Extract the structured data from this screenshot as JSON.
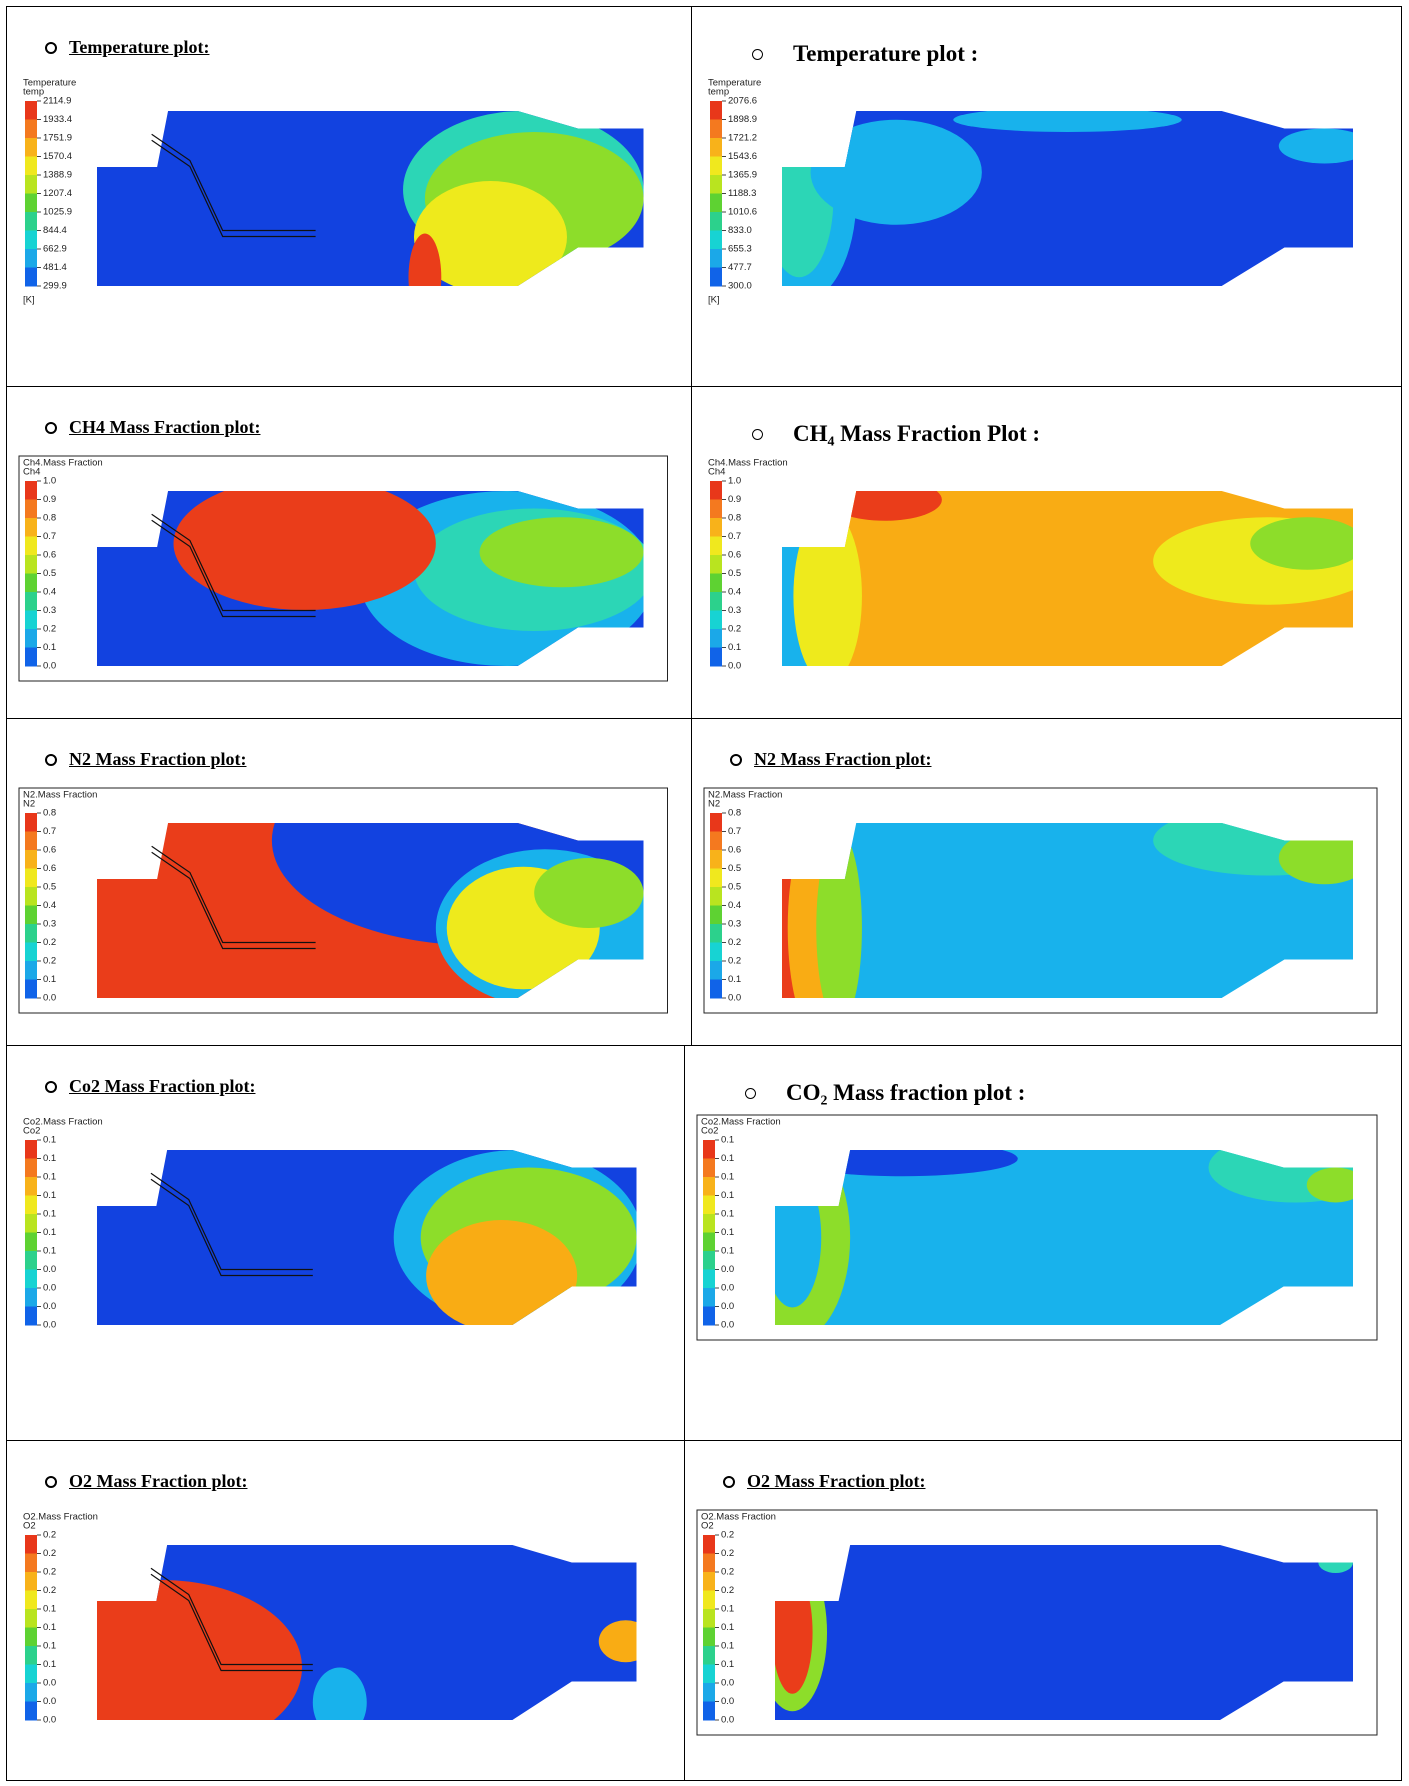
{
  "rows": [
    {
      "left": {
        "heading": "Temperature plot:",
        "legend_title": "Temperature",
        "legend_subtitle": "temp",
        "legend_labels": [
          "2114.9",
          "1933.4",
          "1751.9",
          "1570.4",
          "1388.9",
          "1207.4",
          "1025.9",
          "844.4",
          "662.9",
          "481.4",
          "299.9"
        ],
        "unit": "[K]"
      },
      "right": {
        "heading": "Temperature plot :",
        "legend_title": "Temperature",
        "legend_subtitle": "temp",
        "legend_labels": [
          "2076.6",
          "1898.9",
          "1721.2",
          "1543.6",
          "1365.9",
          "1188.3",
          "1010.6",
          "833.0",
          "655.3",
          "477.7",
          "300.0"
        ],
        "unit": "[K]"
      }
    },
    {
      "left": {
        "heading": "CH4 Mass Fraction plot:",
        "legend_title": "Ch4.Mass Fraction",
        "legend_subtitle": "Ch4",
        "legend_labels": [
          "1.0",
          "0.9",
          "0.8",
          "0.7",
          "0.6",
          "0.5",
          "0.4",
          "0.3",
          "0.2",
          "0.1",
          "0.0"
        ]
      },
      "right": {
        "heading": "CH₄ Mass Fraction Plot :",
        "legend_title": "Ch4.Mass Fraction",
        "legend_subtitle": "Ch4",
        "legend_labels": [
          "1.0",
          "0.9",
          "0.8",
          "0.7",
          "0.6",
          "0.5",
          "0.4",
          "0.3",
          "0.2",
          "0.1",
          "0.0"
        ]
      }
    },
    {
      "left": {
        "heading": "N2 Mass Fraction plot:",
        "legend_title": "N2.Mass Fraction",
        "legend_subtitle": "N2",
        "legend_labels": [
          "0.8",
          "0.7",
          "0.6",
          "0.6",
          "0.5",
          "0.4",
          "0.3",
          "0.2",
          "0.2",
          "0.1",
          "0.0"
        ]
      },
      "right": {
        "heading": "N2 Mass Fraction plot:",
        "legend_title": "N2.Mass Fraction",
        "legend_subtitle": "N2",
        "legend_labels": [
          "0.8",
          "0.7",
          "0.6",
          "0.5",
          "0.5",
          "0.4",
          "0.3",
          "0.2",
          "0.2",
          "0.1",
          "0.0"
        ]
      }
    },
    {
      "left": {
        "heading": "Co2 Mass Fraction plot:",
        "legend_title": "Co2.Mass Fraction",
        "legend_subtitle": "Co2",
        "legend_labels": [
          "0.1",
          "0.1",
          "0.1",
          "0.1",
          "0.1",
          "0.1",
          "0.1",
          "0.0",
          "0.0",
          "0.0",
          "0.0"
        ]
      },
      "right": {
        "heading": "CO₂ Mass fraction plot :",
        "legend_title": "Co2.Mass Fraction",
        "legend_subtitle": "Co2",
        "legend_labels": [
          "0.1",
          "0.1",
          "0.1",
          "0.1",
          "0.1",
          "0.1",
          "0.1",
          "0.0",
          "0.0",
          "0.0",
          "0.0"
        ]
      }
    },
    {
      "left": {
        "heading": "O2 Mass Fraction plot:",
        "legend_title": "O2.Mass Fraction",
        "legend_subtitle": "O2",
        "legend_labels": [
          "0.2",
          "0.2",
          "0.2",
          "0.2",
          "0.1",
          "0.1",
          "0.1",
          "0.1",
          "0.0",
          "0.0",
          "0.0"
        ]
      },
      "right": {
        "heading": "O2 Mass Fraction plot:",
        "legend_title": "O2.Mass Fraction",
        "legend_subtitle": "O2",
        "legend_labels": [
          "0.2",
          "0.2",
          "0.2",
          "0.2",
          "0.1",
          "0.1",
          "0.1",
          "0.1",
          "0.0",
          "0.0",
          "0.0"
        ]
      }
    }
  ]
}
